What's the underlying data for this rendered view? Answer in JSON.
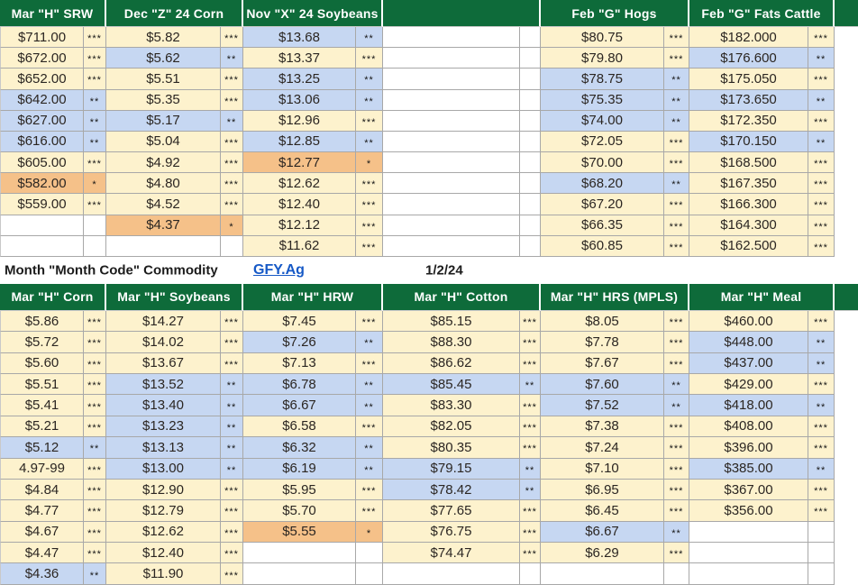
{
  "legend": {
    "label": "Month \"Month Code\" Commodity",
    "link_text": "GFY.Ag",
    "date": "1/2/24"
  },
  "colors": {
    "header_green": "#0e6b3a",
    "row_cream": "#fdf2cd",
    "row_blue": "#c6d7f2",
    "row_orange": "#f5c189",
    "link_blue": "#1659c6",
    "grid_line": "#a8a8a8"
  },
  "top_table": {
    "row_count": 11,
    "columns": [
      {
        "header": "Mar \"H\" SRW",
        "cells": [
          {
            "v": "$711.00",
            "s": "***",
            "c": "cream"
          },
          {
            "v": "$672.00",
            "s": "***",
            "c": "cream"
          },
          {
            "v": "$652.00",
            "s": "***",
            "c": "cream"
          },
          {
            "v": "$642.00",
            "s": "**",
            "c": "blue"
          },
          {
            "v": "$627.00",
            "s": "**",
            "c": "blue"
          },
          {
            "v": "$616.00",
            "s": "**",
            "c": "blue"
          },
          {
            "v": "$605.00",
            "s": "***",
            "c": "cream"
          },
          {
            "v": "$582.00",
            "s": "*",
            "c": "orange"
          },
          {
            "v": "$559.00",
            "s": "***",
            "c": "cream"
          },
          {
            "v": "",
            "s": "",
            "c": "none"
          },
          {
            "v": "",
            "s": "",
            "c": "none"
          }
        ]
      },
      {
        "header": "Dec \"Z\" 24 Corn",
        "cells": [
          {
            "v": "$5.82",
            "s": "***",
            "c": "cream"
          },
          {
            "v": "$5.62",
            "s": "**",
            "c": "blue"
          },
          {
            "v": "$5.51",
            "s": "***",
            "c": "cream"
          },
          {
            "v": "$5.35",
            "s": "***",
            "c": "cream"
          },
          {
            "v": "$5.17",
            "s": "**",
            "c": "blue"
          },
          {
            "v": "$5.04",
            "s": "***",
            "c": "cream"
          },
          {
            "v": "$4.92",
            "s": "***",
            "c": "cream"
          },
          {
            "v": "$4.80",
            "s": "***",
            "c": "cream"
          },
          {
            "v": "$4.52",
            "s": "***",
            "c": "cream"
          },
          {
            "v": "$4.37",
            "s": "*",
            "c": "orange"
          },
          {
            "v": "",
            "s": "",
            "c": "none"
          }
        ]
      },
      {
        "header": "Nov \"X\" 24 Soybeans",
        "cells": [
          {
            "v": "$13.68",
            "s": "**",
            "c": "blue"
          },
          {
            "v": "$13.37",
            "s": "***",
            "c": "cream"
          },
          {
            "v": "$13.25",
            "s": "**",
            "c": "blue"
          },
          {
            "v": "$13.06",
            "s": "**",
            "c": "blue"
          },
          {
            "v": "$12.96",
            "s": "***",
            "c": "cream"
          },
          {
            "v": "$12.85",
            "s": "**",
            "c": "blue"
          },
          {
            "v": "$12.77",
            "s": "*",
            "c": "orange"
          },
          {
            "v": "$12.62",
            "s": "***",
            "c": "cream"
          },
          {
            "v": "$12.40",
            "s": "***",
            "c": "cream"
          },
          {
            "v": "$12.12",
            "s": "***",
            "c": "cream"
          },
          {
            "v": "$11.62",
            "s": "***",
            "c": "cream"
          }
        ]
      },
      {
        "header": "",
        "cells": [
          {
            "v": "",
            "s": "",
            "c": "none"
          },
          {
            "v": "",
            "s": "",
            "c": "none"
          },
          {
            "v": "",
            "s": "",
            "c": "none"
          },
          {
            "v": "",
            "s": "",
            "c": "none"
          },
          {
            "v": "",
            "s": "",
            "c": "none"
          },
          {
            "v": "",
            "s": "",
            "c": "none"
          },
          {
            "v": "",
            "s": "",
            "c": "none"
          },
          {
            "v": "",
            "s": "",
            "c": "none"
          },
          {
            "v": "",
            "s": "",
            "c": "none"
          },
          {
            "v": "",
            "s": "",
            "c": "none"
          },
          {
            "v": "",
            "s": "",
            "c": "none"
          }
        ]
      },
      {
        "header": "Feb \"G\" Hogs",
        "cells": [
          {
            "v": "$80.75",
            "s": "***",
            "c": "cream"
          },
          {
            "v": "$79.80",
            "s": "***",
            "c": "cream"
          },
          {
            "v": "$78.75",
            "s": "**",
            "c": "blue"
          },
          {
            "v": "$75.35",
            "s": "**",
            "c": "blue"
          },
          {
            "v": "$74.00",
            "s": "**",
            "c": "blue"
          },
          {
            "v": "$72.05",
            "s": "***",
            "c": "cream"
          },
          {
            "v": "$70.00",
            "s": "***",
            "c": "cream"
          },
          {
            "v": "$68.20",
            "s": "**",
            "c": "blue"
          },
          {
            "v": "$67.20",
            "s": "***",
            "c": "cream"
          },
          {
            "v": "$66.35",
            "s": "***",
            "c": "cream"
          },
          {
            "v": "$60.85",
            "s": "***",
            "c": "cream"
          }
        ]
      },
      {
        "header": "Feb \"G\" Fats Cattle",
        "cells": [
          {
            "v": "$182.000",
            "s": "***",
            "c": "cream"
          },
          {
            "v": "$176.600",
            "s": "**",
            "c": "blue"
          },
          {
            "v": "$175.050",
            "s": "***",
            "c": "cream"
          },
          {
            "v": "$173.650",
            "s": "**",
            "c": "blue"
          },
          {
            "v": "$172.350",
            "s": "***",
            "c": "cream"
          },
          {
            "v": "$170.150",
            "s": "**",
            "c": "blue"
          },
          {
            "v": "$168.500",
            "s": "***",
            "c": "cream"
          },
          {
            "v": "$167.350",
            "s": "***",
            "c": "cream"
          },
          {
            "v": "$166.300",
            "s": "***",
            "c": "cream"
          },
          {
            "v": "$164.300",
            "s": "***",
            "c": "cream"
          },
          {
            "v": "$162.500",
            "s": "***",
            "c": "cream"
          }
        ]
      }
    ]
  },
  "bottom_table": {
    "row_count": 13,
    "columns": [
      {
        "header": "Mar \"H\" Corn",
        "cells": [
          {
            "v": "$5.86",
            "s": "***",
            "c": "cream"
          },
          {
            "v": "$5.72",
            "s": "***",
            "c": "cream"
          },
          {
            "v": "$5.60",
            "s": "***",
            "c": "cream"
          },
          {
            "v": "$5.51",
            "s": "***",
            "c": "cream"
          },
          {
            "v": "$5.41",
            "s": "***",
            "c": "cream"
          },
          {
            "v": "$5.21",
            "s": "***",
            "c": "cream"
          },
          {
            "v": "$5.12",
            "s": "**",
            "c": "blue"
          },
          {
            "v": "4.97-99",
            "s": "***",
            "c": "cream"
          },
          {
            "v": "$4.84",
            "s": "***",
            "c": "cream"
          },
          {
            "v": "$4.77",
            "s": "***",
            "c": "cream"
          },
          {
            "v": "$4.67",
            "s": "***",
            "c": "cream"
          },
          {
            "v": "$4.47",
            "s": "***",
            "c": "cream"
          },
          {
            "v": "$4.36",
            "s": "**",
            "c": "blue"
          }
        ]
      },
      {
        "header": "Mar \"H\" Soybeans",
        "cells": [
          {
            "v": "$14.27",
            "s": "***",
            "c": "cream"
          },
          {
            "v": "$14.02",
            "s": "***",
            "c": "cream"
          },
          {
            "v": "$13.67",
            "s": "***",
            "c": "cream"
          },
          {
            "v": "$13.52",
            "s": "**",
            "c": "blue"
          },
          {
            "v": "$13.40",
            "s": "**",
            "c": "blue"
          },
          {
            "v": "$13.23",
            "s": "**",
            "c": "blue"
          },
          {
            "v": "$13.13",
            "s": "**",
            "c": "blue"
          },
          {
            "v": "$13.00",
            "s": "**",
            "c": "blue"
          },
          {
            "v": "$12.90",
            "s": "***",
            "c": "cream"
          },
          {
            "v": "$12.79",
            "s": "***",
            "c": "cream"
          },
          {
            "v": "$12.62",
            "s": "***",
            "c": "cream"
          },
          {
            "v": "$12.40",
            "s": "***",
            "c": "cream"
          },
          {
            "v": "$11.90",
            "s": "***",
            "c": "cream"
          }
        ]
      },
      {
        "header": "Mar \"H\" HRW",
        "cells": [
          {
            "v": "$7.45",
            "s": "***",
            "c": "cream"
          },
          {
            "v": "$7.26",
            "s": "**",
            "c": "blue"
          },
          {
            "v": "$7.13",
            "s": "***",
            "c": "cream"
          },
          {
            "v": "$6.78",
            "s": "**",
            "c": "blue"
          },
          {
            "v": "$6.67",
            "s": "**",
            "c": "blue"
          },
          {
            "v": "$6.58",
            "s": "***",
            "c": "cream"
          },
          {
            "v": "$6.32",
            "s": "**",
            "c": "blue"
          },
          {
            "v": "$6.19",
            "s": "**",
            "c": "blue"
          },
          {
            "v": "$5.95",
            "s": "***",
            "c": "cream"
          },
          {
            "v": "$5.70",
            "s": "***",
            "c": "cream"
          },
          {
            "v": "$5.55",
            "s": "*",
            "c": "orange"
          },
          {
            "v": "",
            "s": "",
            "c": "none"
          },
          {
            "v": "",
            "s": "",
            "c": "none"
          }
        ]
      },
      {
        "header": "Mar \"H\" Cotton",
        "cells": [
          {
            "v": "$85.15",
            "s": "***",
            "c": "cream"
          },
          {
            "v": "$88.30",
            "s": "***",
            "c": "cream"
          },
          {
            "v": "$86.62",
            "s": "***",
            "c": "cream"
          },
          {
            "v": "$85.45",
            "s": "**",
            "c": "blue"
          },
          {
            "v": "$83.30",
            "s": "***",
            "c": "cream"
          },
          {
            "v": "$82.05",
            "s": "***",
            "c": "cream"
          },
          {
            "v": "$80.35",
            "s": "***",
            "c": "cream"
          },
          {
            "v": "$79.15",
            "s": "**",
            "c": "blue"
          },
          {
            "v": "$78.42",
            "s": "**",
            "c": "blue"
          },
          {
            "v": "$77.65",
            "s": "***",
            "c": "cream"
          },
          {
            "v": "$76.75",
            "s": "***",
            "c": "cream"
          },
          {
            "v": "$74.47",
            "s": "***",
            "c": "cream"
          },
          {
            "v": "",
            "s": "",
            "c": "none"
          }
        ]
      },
      {
        "header": "Mar \"H\" HRS (MPLS)",
        "cells": [
          {
            "v": "$8.05",
            "s": "***",
            "c": "cream"
          },
          {
            "v": "$7.78",
            "s": "***",
            "c": "cream"
          },
          {
            "v": "$7.67",
            "s": "***",
            "c": "cream"
          },
          {
            "v": "$7.60",
            "s": "**",
            "c": "blue"
          },
          {
            "v": "$7.52",
            "s": "**",
            "c": "blue"
          },
          {
            "v": "$7.38",
            "s": "***",
            "c": "cream"
          },
          {
            "v": "$7.24",
            "s": "***",
            "c": "cream"
          },
          {
            "v": "$7.10",
            "s": "***",
            "c": "cream"
          },
          {
            "v": "$6.95",
            "s": "***",
            "c": "cream"
          },
          {
            "v": "$6.45",
            "s": "***",
            "c": "cream"
          },
          {
            "v": "$6.67",
            "s": "**",
            "c": "blue"
          },
          {
            "v": "$6.29",
            "s": "***",
            "c": "cream"
          },
          {
            "v": "",
            "s": "",
            "c": "none"
          }
        ]
      },
      {
        "header": "Mar \"H\" Meal",
        "cells": [
          {
            "v": "$460.00",
            "s": "***",
            "c": "cream"
          },
          {
            "v": "$448.00",
            "s": "**",
            "c": "blue"
          },
          {
            "v": "$437.00",
            "s": "**",
            "c": "blue"
          },
          {
            "v": "$429.00",
            "s": "***",
            "c": "cream"
          },
          {
            "v": "$418.00",
            "s": "**",
            "c": "blue"
          },
          {
            "v": "$408.00",
            "s": "***",
            "c": "cream"
          },
          {
            "v": "$396.00",
            "s": "***",
            "c": "cream"
          },
          {
            "v": "$385.00",
            "s": "**",
            "c": "blue"
          },
          {
            "v": "$367.00",
            "s": "***",
            "c": "cream"
          },
          {
            "v": "$356.00",
            "s": "***",
            "c": "cream"
          },
          {
            "v": "",
            "s": "",
            "c": "none"
          },
          {
            "v": "",
            "s": "",
            "c": "none"
          },
          {
            "v": "",
            "s": "",
            "c": "none"
          }
        ]
      }
    ]
  }
}
